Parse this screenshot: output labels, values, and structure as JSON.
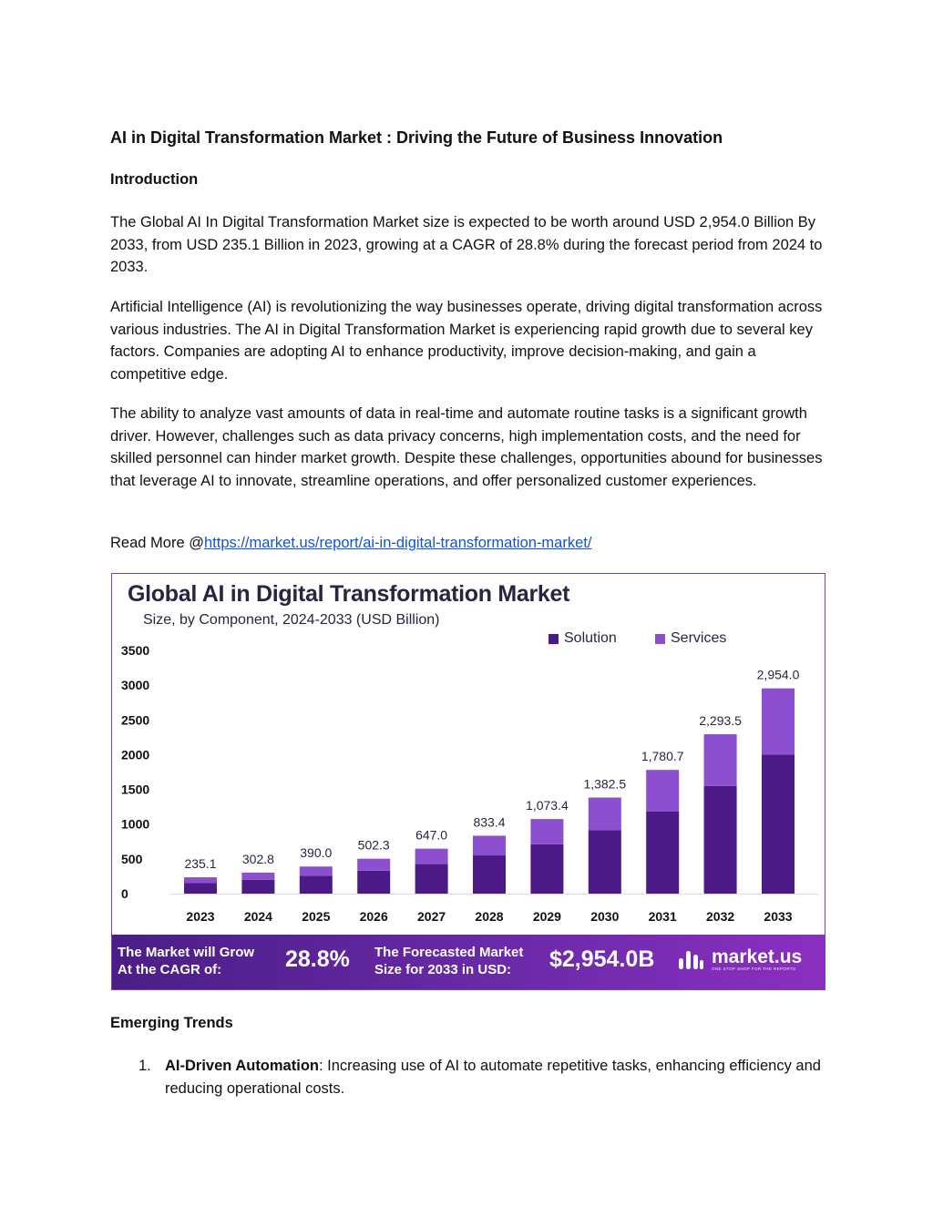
{
  "document": {
    "title": "AI in Digital Transformation Market : Driving the Future of Business Innovation",
    "intro_heading": "Introduction",
    "paragraphs": [
      "The Global AI In Digital Transformation Market size is expected to be worth around USD 2,954.0 Billion By 2033, from USD 235.1 Billion in 2023, growing at a CAGR of 28.8% during the forecast period from 2024 to 2033.",
      "Artificial Intelligence (AI) is revolutionizing the way businesses operate, driving digital transformation across various industries. The AI in Digital Transformation Market is experiencing rapid growth due to several key factors. Companies are adopting AI to enhance productivity, improve decision-making, and gain a competitive edge.",
      "The ability to analyze vast amounts of data in real-time and automate routine tasks is a significant growth driver. However, challenges such as data privacy concerns, high implementation costs, and the need for skilled personnel can hinder market growth. Despite these challenges, opportunities abound for businesses that leverage AI to innovate, streamline operations, and offer personalized customer experiences."
    ],
    "read_more_prefix": "Read More @",
    "read_more_link": "https://market.us/report/ai-in-digital-transformation-market/",
    "trends_heading": "Emerging Trends",
    "trends": [
      {
        "number": "1.",
        "title": "AI-Driven Automation",
        "text": ": Increasing use of AI to automate repetitive tasks, enhancing efficiency and reducing operational costs."
      }
    ]
  },
  "figure": {
    "banner": {
      "cagr_label_line1": "The Market will Grow",
      "cagr_label_line2": "At the CAGR of:",
      "cagr_value": "28.8%",
      "forecast_label_line1": "The Forecasted Market",
      "forecast_label_line2": "Size for 2033 in USD:",
      "forecast_value": "$2,954.0B",
      "brand": "market.us",
      "brand_tagline": "ONE STOP SHOP FOR THE REPORTS"
    }
  },
  "colors": {
    "solution": "#4b1a86",
    "services": "#8c4fd0",
    "link": "#1155cc"
  },
  "chart_data": {
    "type": "bar",
    "stacked": true,
    "title": "Global AI in Digital Transformation Market",
    "subtitle": "Size, by Component, 2024-2033 (USD Billion)",
    "categories": [
      "2023",
      "2024",
      "2025",
      "2026",
      "2027",
      "2028",
      "2029",
      "2030",
      "2031",
      "2032",
      "2033"
    ],
    "series": [
      {
        "name": "Solution",
        "values": [
          155,
          200,
          255,
          330,
          425,
          550,
          710,
          915,
          1180,
          1550,
          2000
        ]
      },
      {
        "name": "Services",
        "values": [
          80.1,
          102.8,
          135.0,
          172.3,
          222.0,
          283.4,
          363.4,
          467.5,
          600.7,
          743.5,
          954.0
        ]
      }
    ],
    "totals": [
      "235.1",
      "302.8",
      "390.0",
      "502.3",
      "647.0",
      "833.4",
      "1,073.4",
      "1,382.5",
      "1,780.7",
      "2,293.5",
      "2,954.0"
    ],
    "yticks": [
      0,
      500,
      1000,
      1500,
      2000,
      2500,
      3000,
      3500
    ],
    "ylim": [
      0,
      3500
    ],
    "legend_position": "top-right",
    "grid": false
  }
}
